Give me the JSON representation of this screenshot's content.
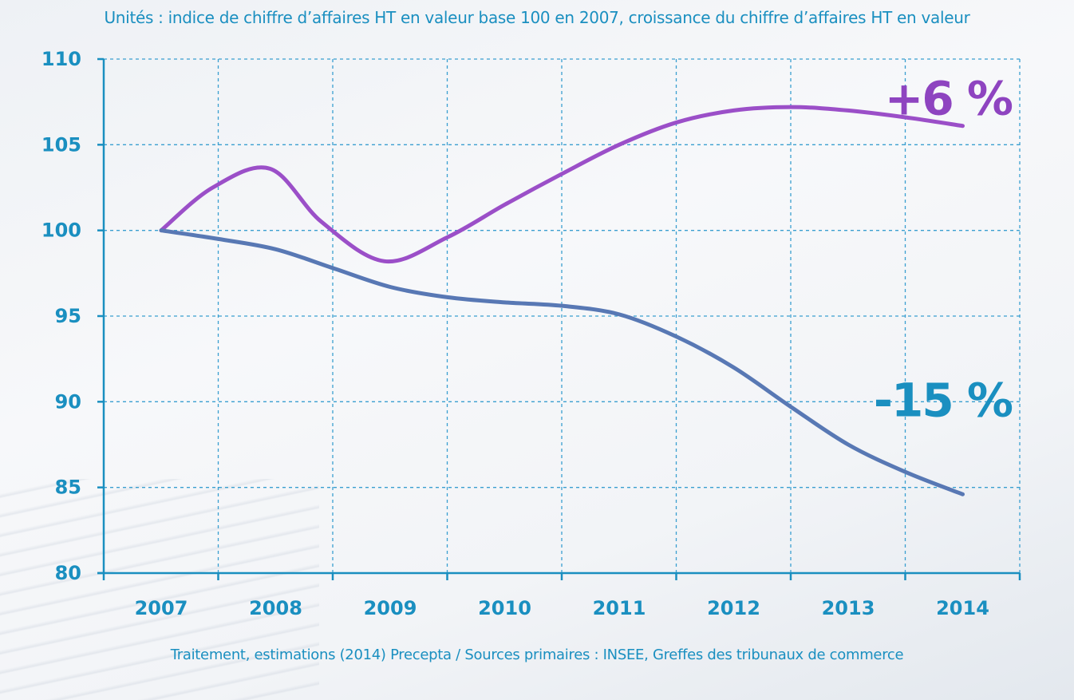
{
  "header": {
    "units_text": "Unités : indice de chiffre d’affaires HT en valeur base 100 en 2007, croissance du chiffre d’affaires HT en valeur"
  },
  "footer": {
    "source_text": "Traitement, estimations (2014) Precepta / Sources primaires : INSEE, Greffes des tribunaux de commerce"
  },
  "colors": {
    "axis": "#1a8fc0",
    "grid": "#3a9fd0",
    "series_purple": "#9b4fc8",
    "series_blue": "#5878b4",
    "annot_purple": "#8e44c0",
    "annot_blue": "#1a8fc0"
  },
  "chart_data": {
    "type": "line",
    "x": [
      "2007",
      "2008",
      "2009",
      "2010",
      "2011",
      "2012",
      "2013",
      "2014"
    ],
    "ylim": [
      80,
      110
    ],
    "yticks": [
      80,
      85,
      90,
      95,
      100,
      105,
      110
    ],
    "grid": true,
    "series": [
      {
        "key": "purple",
        "points": [
          [
            2007,
            100
          ],
          [
            2007.45,
            102.5
          ],
          [
            2007.95,
            103.6
          ],
          [
            2008.4,
            100.5
          ],
          [
            2008.95,
            98.2
          ],
          [
            2009.5,
            99.6
          ],
          [
            2010,
            101.5
          ],
          [
            2010.5,
            103.3
          ],
          [
            2011,
            105.0
          ],
          [
            2011.5,
            106.3
          ],
          [
            2012,
            107.0
          ],
          [
            2012.5,
            107.2
          ],
          [
            2013,
            107.0
          ],
          [
            2013.5,
            106.6
          ],
          [
            2014,
            106.1
          ]
        ],
        "end_label": "+6 %"
      },
      {
        "key": "blue",
        "points": [
          [
            2007,
            100
          ],
          [
            2007.5,
            99.5
          ],
          [
            2008,
            98.9
          ],
          [
            2008.5,
            97.8
          ],
          [
            2009,
            96.7
          ],
          [
            2009.5,
            96.1
          ],
          [
            2010,
            95.8
          ],
          [
            2010.5,
            95.6
          ],
          [
            2011,
            95.1
          ],
          [
            2011.5,
            93.8
          ],
          [
            2012,
            92.0
          ],
          [
            2012.5,
            89.7
          ],
          [
            2013,
            87.5
          ],
          [
            2013.5,
            85.9
          ],
          [
            2014,
            84.6
          ]
        ],
        "end_label": "-15 %"
      }
    ]
  }
}
